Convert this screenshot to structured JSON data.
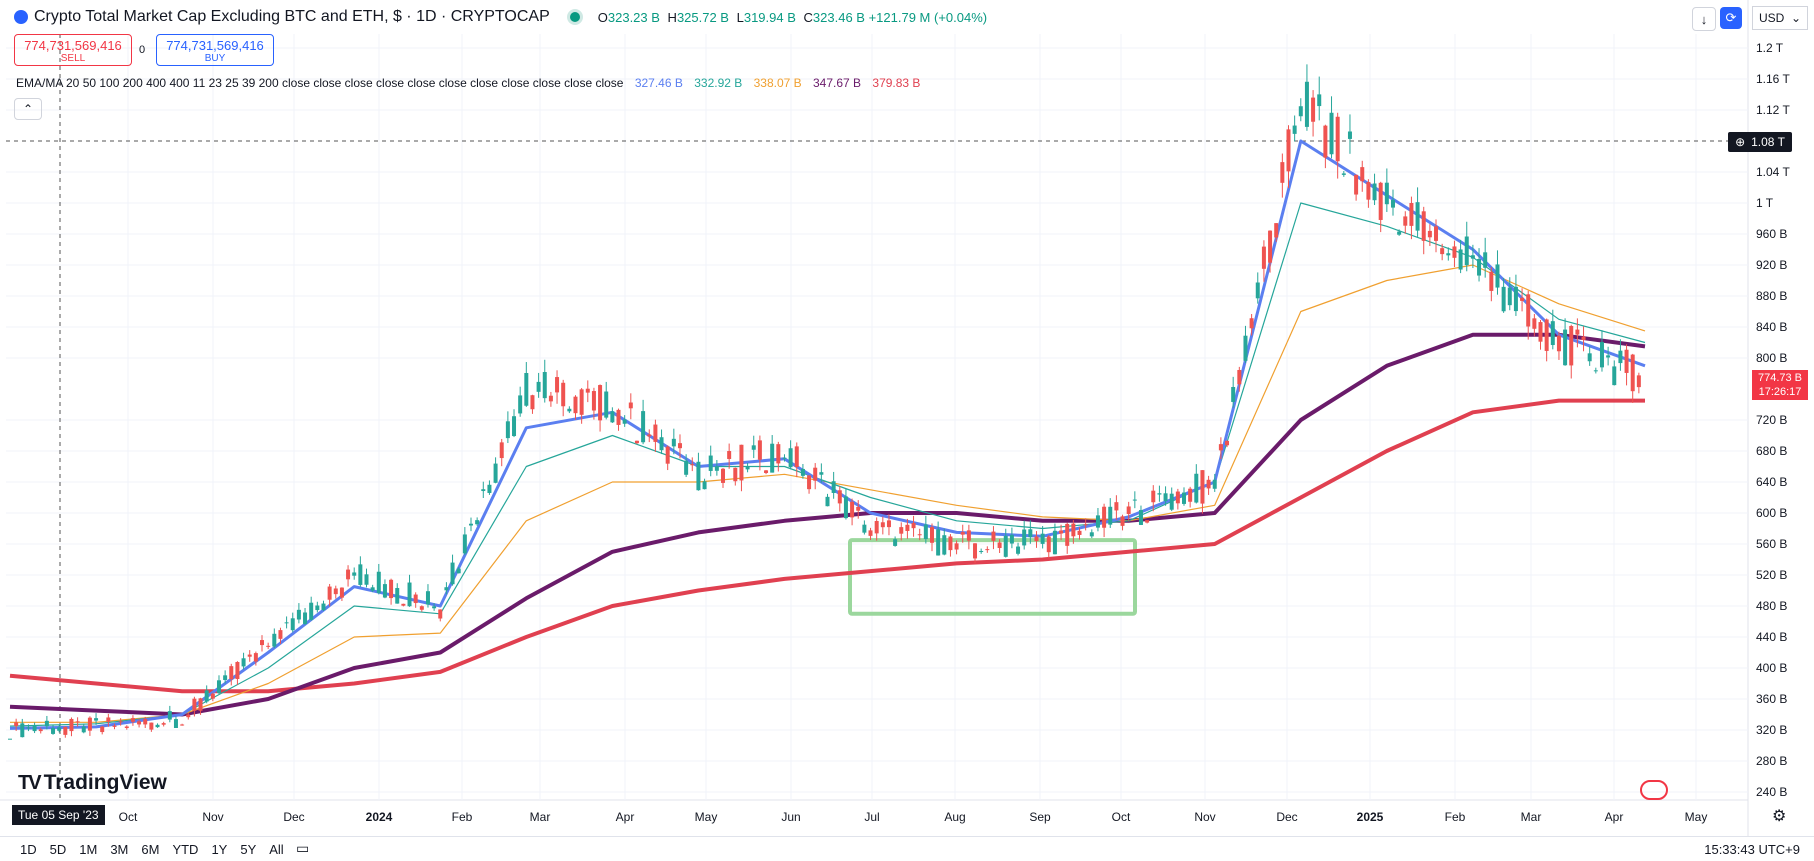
{
  "header": {
    "title": "Crypto Total Market Cap Excluding BTC and ETH, $ · 1D · CRYPTOCAP",
    "ohlc": {
      "o_label": "O",
      "o": "323.23 B",
      "h_label": "H",
      "h": "325.72 B",
      "l_label": "L",
      "l": "319.94 B",
      "c_label": "C",
      "c": "323.46 B",
      "change": "+121.79 M (+0.04%)"
    },
    "currency": "USD"
  },
  "trade": {
    "sell_price": "774,731,569,416",
    "sell_label": "SELL",
    "spread": "0",
    "buy_price": "774,731,569,416",
    "buy_label": "BUY"
  },
  "legend": {
    "text": "EMA/MA 20 50 100 200 400 400 11 23 25 39 200 close close close close close close close close close close close",
    "values": [
      "327.46 B",
      "332.92 B",
      "338.07 B",
      "347.67 B",
      "379.83 B"
    ],
    "colors": [
      "#5b7ff0",
      "#26a69a",
      "#f0a030",
      "#6a1b6a",
      "#e04050"
    ]
  },
  "price_axis": {
    "labels": [
      "1.2 T",
      "1.16 T",
      "1.12 T",
      "1.04 T",
      "1 T",
      "960 B",
      "920 B",
      "880 B",
      "840 B",
      "800 B",
      "720 B",
      "680 B",
      "640 B",
      "600 B",
      "560 B",
      "520 B",
      "480 B",
      "440 B",
      "400 B",
      "360 B",
      "320 B",
      "280 B",
      "240 B"
    ],
    "last_price": "774.73 B",
    "countdown": "17:26:17",
    "crosshair_value": "1.08 T"
  },
  "time_axis": {
    "labels": [
      "Oct",
      "Nov",
      "Dec",
      "2024",
      "Feb",
      "Mar",
      "Apr",
      "May",
      "Jun",
      "Jul",
      "Aug",
      "Sep",
      "Oct",
      "Nov",
      "Dec",
      "2025",
      "Feb",
      "Mar",
      "Apr",
      "May"
    ],
    "cursor_date": "Tue 05 Sep '23"
  },
  "chart_data": {
    "type": "candlestick",
    "ylim": [
      240,
      1200
    ],
    "y_unit": "B",
    "x": [
      "Sep '23",
      "Oct",
      "Nov",
      "Dec",
      "2024",
      "Feb",
      "Mar",
      "Apr",
      "May",
      "Jun",
      "Jul",
      "Aug",
      "Sep",
      "Oct",
      "Nov",
      "Dec",
      "2025",
      "Feb",
      "Mar",
      "Apr"
    ],
    "series": [
      {
        "name": "price",
        "values": [
          320,
          325,
          335,
          430,
          520,
          480,
          760,
          740,
          650,
          680,
          580,
          560,
          560,
          600,
          640,
          1130,
          1000,
          920,
          820,
          775
        ]
      },
      {
        "name": "EMA 20",
        "values": [
          322,
          324,
          340,
          420,
          505,
          480,
          710,
          730,
          660,
          670,
          600,
          575,
          570,
          595,
          640,
          1080,
          1010,
          940,
          830,
          790
        ]
      },
      {
        "name": "EMA 50",
        "values": [
          325,
          328,
          340,
          400,
          480,
          470,
          660,
          700,
          660,
          660,
          620,
          590,
          580,
          590,
          640,
          1000,
          970,
          930,
          850,
          820
        ]
      },
      {
        "name": "EMA 100",
        "values": [
          330,
          330,
          340,
          380,
          440,
          445,
          590,
          640,
          640,
          650,
          630,
          610,
          595,
          590,
          610,
          860,
          900,
          920,
          870,
          835
        ]
      },
      {
        "name": "EMA 200",
        "values": [
          350,
          345,
          340,
          360,
          400,
          420,
          490,
          550,
          575,
          590,
          600,
          600,
          590,
          590,
          600,
          720,
          790,
          830,
          830,
          815
        ]
      },
      {
        "name": "MA 400",
        "values": [
          390,
          380,
          370,
          370,
          380,
          395,
          440,
          480,
          500,
          515,
          525,
          535,
          540,
          550,
          560,
          620,
          680,
          730,
          745,
          745
        ]
      }
    ],
    "annotation": {
      "type": "rectangle",
      "x_range": [
        "Jul",
        "Oct"
      ],
      "y_range": [
        470,
        565
      ],
      "color": "#9bd79d"
    },
    "grid": true
  },
  "bottom": {
    "ranges": [
      "1D",
      "5D",
      "1M",
      "3M",
      "6M",
      "YTD",
      "1Y",
      "5Y",
      "All"
    ],
    "clock": "15:33:43 UTC+9"
  },
  "brand": {
    "name": "TradingView"
  }
}
